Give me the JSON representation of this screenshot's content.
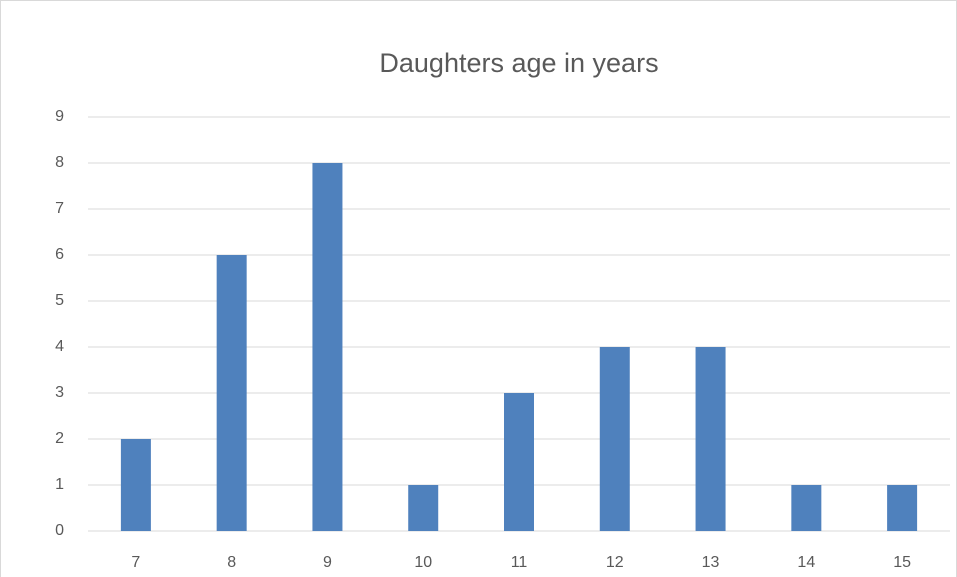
{
  "chart_data": {
    "type": "bar",
    "title": "Daughters age in years",
    "categories": [
      "7",
      "8",
      "9",
      "10",
      "11",
      "12",
      "13",
      "14",
      "15"
    ],
    "values": [
      2,
      6,
      8,
      1,
      3,
      4,
      4,
      1,
      1
    ],
    "color": "#4f81bd",
    "ylim": [
      0,
      9
    ],
    "yticks": [
      0,
      1,
      2,
      3,
      4,
      5,
      6,
      7,
      8,
      9
    ],
    "grid": true
  }
}
